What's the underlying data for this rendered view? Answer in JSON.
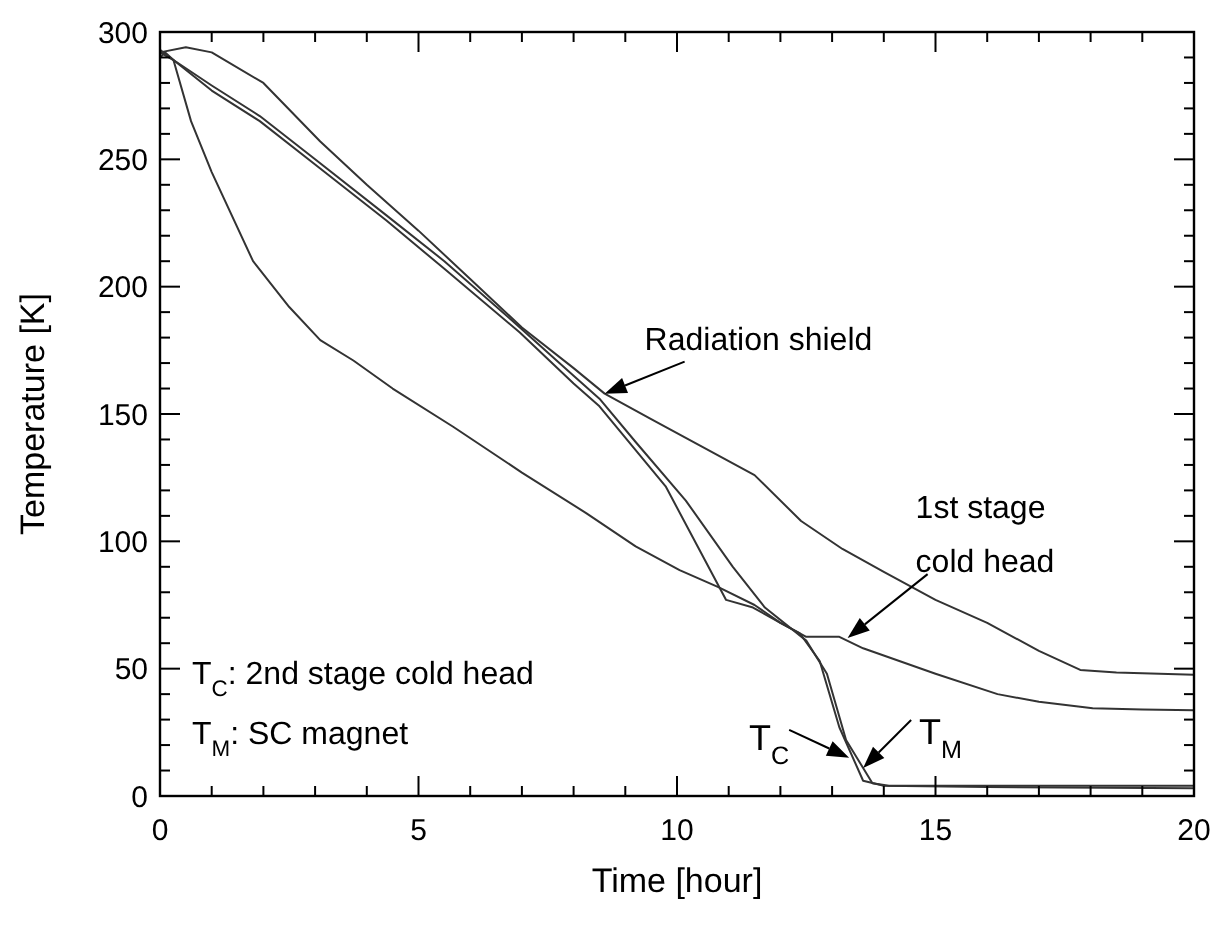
{
  "chart_data": {
    "type": "line",
    "xlabel": "Time [hour]",
    "ylabel": "Temperature [K]",
    "xlim": [
      0,
      20
    ],
    "ylim": [
      0,
      300
    ],
    "xticks": [
      0,
      {
        "value": 1,
        "label": null
      },
      {
        "value": 2,
        "label": null
      },
      {
        "value": 3,
        "label": null
      },
      {
        "value": 4,
        "label": null
      },
      5,
      {
        "value": 6,
        "label": null
      },
      {
        "value": 7,
        "label": null
      },
      {
        "value": 8,
        "label": null
      },
      {
        "value": 9,
        "label": null
      },
      10,
      {
        "value": 11,
        "label": null
      },
      {
        "value": 12,
        "label": null
      },
      {
        "value": 13,
        "label": null
      },
      {
        "value": 14,
        "label": null
      },
      15,
      {
        "value": 16,
        "label": null
      },
      {
        "value": 17,
        "label": null
      },
      {
        "value": 18,
        "label": null
      },
      {
        "value": 19,
        "label": null
      },
      20
    ],
    "yticks": [
      0,
      {
        "value": 10,
        "label": null
      },
      {
        "value": 20,
        "label": null
      },
      {
        "value": 30,
        "label": null
      },
      {
        "value": 40,
        "label": null
      },
      50,
      {
        "value": 60,
        "label": null
      },
      {
        "value": 70,
        "label": null
      },
      {
        "value": 80,
        "label": null
      },
      {
        "value": 90,
        "label": null
      },
      100,
      {
        "value": 110,
        "label": null
      },
      {
        "value": 120,
        "label": null
      },
      {
        "value": 130,
        "label": null
      },
      {
        "value": 140,
        "label": null
      },
      150,
      {
        "value": 160,
        "label": null
      },
      {
        "value": 170,
        "label": null
      },
      {
        "value": 180,
        "label": null
      },
      {
        "value": 190,
        "label": null
      },
      200,
      {
        "value": 210,
        "label": null
      },
      {
        "value": 220,
        "label": null
      },
      {
        "value": 230,
        "label": null
      },
      {
        "value": 240,
        "label": null
      },
      250,
      {
        "value": 260,
        "label": null
      },
      {
        "value": 270,
        "label": null
      },
      {
        "value": 280,
        "label": null
      },
      {
        "value": 290,
        "label": null
      },
      300
    ],
    "grid": false,
    "marker": "none",
    "line_style": "solid",
    "series": [
      {
        "color": "#333333",
        "x": [
          0,
          0.5,
          1,
          2,
          3.1,
          4,
          5,
          6,
          7,
          8,
          8.6,
          9.5,
          10.5,
          11.5,
          12.4,
          13.2,
          14,
          15,
          16,
          17,
          17.8,
          18.5,
          20
        ],
        "values": [
          292,
          294,
          292,
          280,
          257,
          240,
          222,
          203,
          184,
          168,
          158,
          148,
          137,
          126,
          108,
          97,
          88,
          77,
          68,
          57,
          49.5,
          48.5,
          47.6
        ]
      },
      {
        "color": "#333333",
        "x": [
          0,
          0.1,
          0.26,
          0.6,
          1,
          1.8,
          2.5,
          3.1,
          3.74,
          4.5,
          5.67,
          7,
          8.25,
          9.2,
          10.05,
          10.8,
          11.5,
          12,
          12.5,
          13.14,
          13.6,
          14.3,
          15,
          16.2,
          17,
          18.04,
          19,
          20
        ],
        "values": [
          290,
          292,
          289,
          265,
          245,
          210,
          192,
          179,
          171,
          160,
          145,
          127,
          111,
          98,
          88.7,
          82,
          75,
          68,
          62.5,
          62.5,
          58,
          53,
          48,
          40,
          37,
          34.5,
          34,
          33.7
        ]
      },
      {
        "color": "#333333",
        "x": [
          0,
          0.26,
          1,
          1.93,
          3,
          4.38,
          5.5,
          6.96,
          8,
          8.5,
          9.78,
          10.4,
          10.95,
          11.47,
          12,
          12.37,
          12.76,
          13.14,
          13.6,
          14,
          16,
          20
        ],
        "values": [
          292,
          289,
          277,
          265,
          248,
          226,
          207,
          182,
          162,
          153,
          121.6,
          98,
          77,
          74,
          68,
          64,
          53,
          27,
          6,
          4,
          3.5,
          3
        ]
      },
      {
        "color": "#333333",
        "x": [
          0,
          0.26,
          1,
          1.93,
          3,
          4.38,
          5.5,
          6.96,
          8,
          8.5,
          9.2,
          10.17,
          11.08,
          11.7,
          12.5,
          12.9,
          13.27,
          13.78,
          14.1,
          16,
          20
        ],
        "values": [
          293,
          289,
          279,
          267,
          250,
          228,
          210,
          184,
          165,
          156,
          139,
          116,
          90,
          74,
          61,
          48,
          22,
          5,
          4,
          4,
          4
        ]
      }
    ],
    "annotations": [
      {
        "text": "Radiation shield",
        "x": 8.6,
        "y": 158
      },
      {
        "text": "1st stage\ncold head",
        "x": 13.3,
        "y": 62
      },
      {
        "text": "T$_{C}$",
        "x": 13.33,
        "y": 15
      },
      {
        "text": "T$_{M}$",
        "x": 13.6,
        "y": 11
      },
      "T$_{C}$: 2nd stage cold head",
      "T$_{M}$: SC magnet"
    ]
  }
}
